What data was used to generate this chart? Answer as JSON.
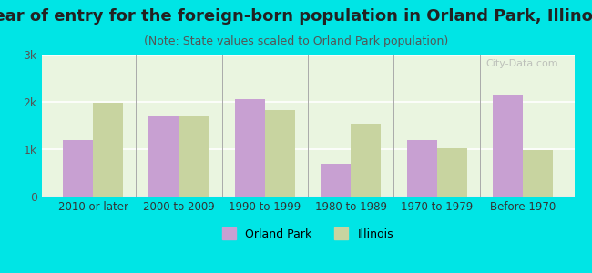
{
  "title": "Year of entry for the foreign-born population in Orland Park, Illinois",
  "subtitle": "(Note: State values scaled to Orland Park population)",
  "categories": [
    "2010 or later",
    "2000 to 2009",
    "1990 to 1999",
    "1980 to 1989",
    "1970 to 1979",
    "Before 1970"
  ],
  "orland_park": [
    1200,
    1700,
    2050,
    700,
    1200,
    2150
  ],
  "illinois": [
    1980,
    1700,
    1820,
    1530,
    1020,
    980
  ],
  "orland_color": "#c8a0d2",
  "illinois_color": "#c8d4a0",
  "background_color": "#00e5e5",
  "plot_bg_color": "#eaf5e0",
  "ylim": [
    0,
    3000
  ],
  "yticks": [
    0,
    1000,
    2000,
    3000
  ],
  "ytick_labels": [
    "0",
    "1k",
    "2k",
    "3k"
  ],
  "bar_width": 0.35,
  "title_fontsize": 13,
  "subtitle_fontsize": 9,
  "legend_labels": [
    "Orland Park",
    "Illinois"
  ],
  "watermark": "City-Data.com"
}
